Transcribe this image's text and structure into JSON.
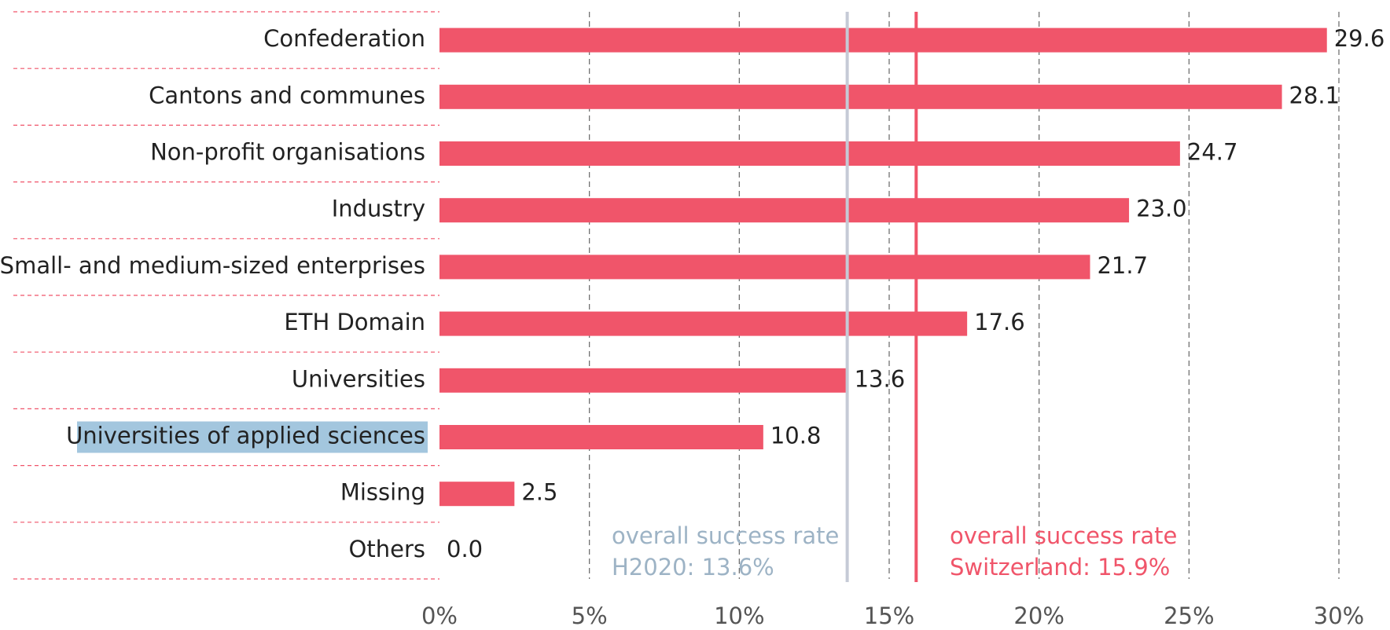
{
  "chart_data": {
    "type": "hbar",
    "categories": [
      "Confederation",
      "Cantons and communes",
      "Non-profit organisations",
      "Industry",
      "Small- and medium-sized enterprises",
      "ETH Domain",
      "Universities",
      "Universities of applied sciences",
      "Missing",
      "Others"
    ],
    "values": [
      29.6,
      28.1,
      24.7,
      23.0,
      21.7,
      17.6,
      13.6,
      10.8,
      2.5,
      0.0
    ],
    "value_labels": [
      "29.6",
      "28.1",
      "24.7",
      "23.0",
      "21.7",
      "17.6",
      "13.6",
      "10.8",
      "2.5",
      "0.0"
    ],
    "color": "#f0556a",
    "highlight": 7,
    "highlight_color": "#a3c6de",
    "xlim": [
      0,
      30
    ],
    "xticks": [
      {
        "value": 0,
        "label": "0%"
      },
      {
        "value": 5,
        "label": "5%"
      },
      {
        "value": 10,
        "label": "10%"
      },
      {
        "value": 15,
        "label": "15%"
      },
      {
        "value": 20,
        "label": "20%"
      },
      {
        "value": 25,
        "label": "25%"
      },
      {
        "value": 30,
        "label": "30%"
      }
    ],
    "grid": true,
    "reference_lines": [
      {
        "value": 13.6,
        "color": "#c5cad6",
        "text_color": "#9db3c5",
        "label": [
          "overall success rate",
          "H2020: 13.6%"
        ]
      },
      {
        "value": 15.9,
        "color": "#f0556a",
        "text_color": "#f0556a",
        "label": [
          "overall success rate",
          "Switzerland: 15.9%"
        ]
      }
    ]
  }
}
